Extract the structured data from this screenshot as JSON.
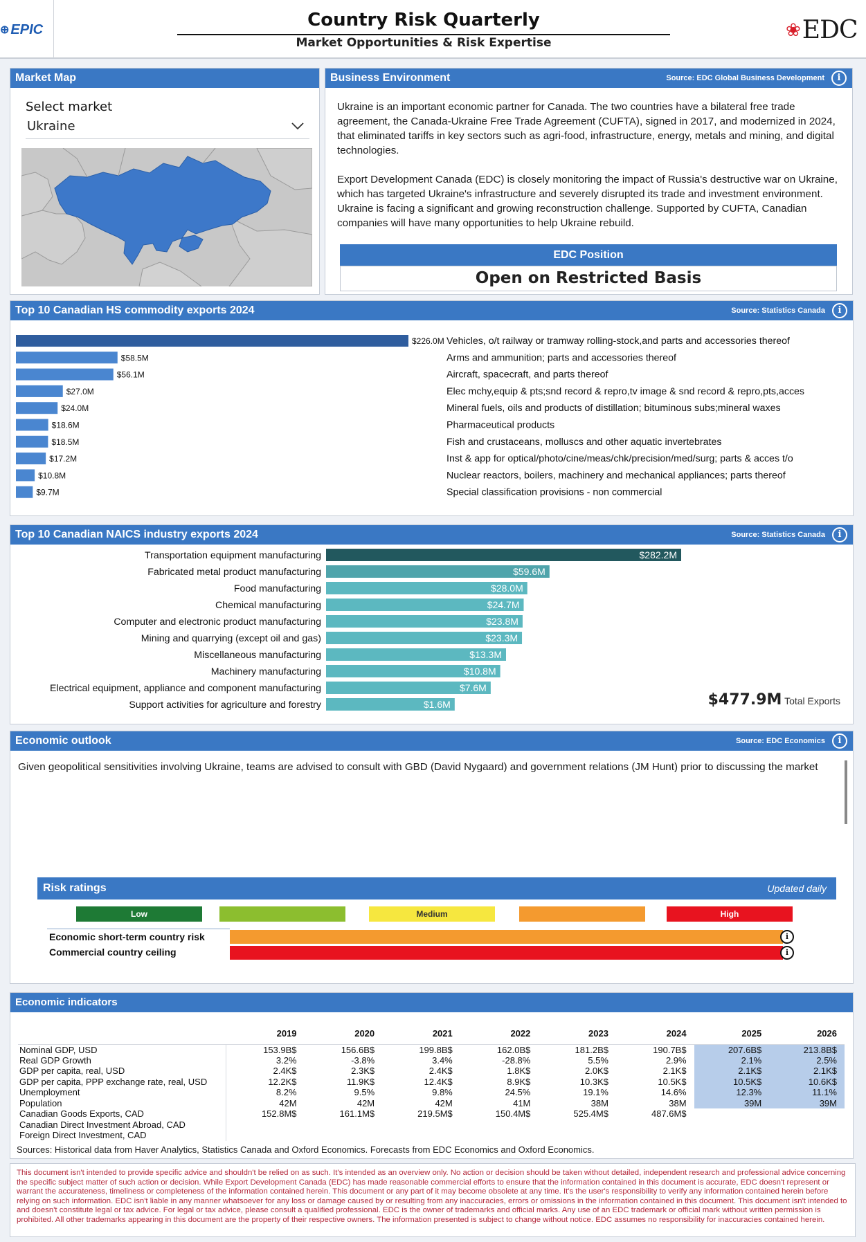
{
  "header": {
    "epic_logo": "EPIC",
    "title": "Country Risk Quarterly",
    "subtitle": "Market Opportunities & Risk Expertise",
    "edc_logo": "EDC"
  },
  "market_map": {
    "title": "Market Map",
    "select_label": "Select market",
    "selected_market": "Ukraine"
  },
  "business_environment": {
    "title": "Business Environment",
    "source": "Source: EDC Global Business Development",
    "paragraphs": [
      "Ukraine is an important economic partner for Canada. The two countries have a bilateral free trade agreement, the Canada-Ukraine Free Trade Agreement (CUFTA), signed in 2017, and modernized in 2024, that eliminated tariffs in key sectors such as agri-food, infrastructure, energy, metals and mining, and digital technologies.",
      "Export Development Canada (EDC) is closely monitoring the impact of Russia's destructive war on Ukraine, which has targeted Ukraine's infrastructure and severely disrupted its trade and investment environment. Ukraine is facing a significant and growing reconstruction challenge. Supported by CUFTA, Canadian companies will have many opportunities to help Ukraine rebuild."
    ],
    "edc_position_label": "EDC Position",
    "edc_position_value": "Open on Restricted Basis"
  },
  "hs_exports": {
    "title": "Top 10 Canadian HS commodity exports 2024",
    "source": "Source: Statistics Canada"
  },
  "naics_exports": {
    "title": "Top 10 Canadian NAICS industry exports 2024",
    "source": "Source: Statistics Canada",
    "total_value": "$477.9M",
    "total_label": "Total Exports"
  },
  "economic_outlook": {
    "title": "Economic outlook",
    "source": "Source: EDC Economics",
    "text": "Given geopolitical sensitivities involving Ukraine, teams are advised to consult with GBD (David Nygaard) and government relations (JM Hunt) prior to discussing the market"
  },
  "risk_ratings": {
    "title": "Risk ratings",
    "updated": "Updated daily",
    "legend": [
      {
        "label": "Low",
        "color": "#1e7a35",
        "text_color": "#ffffff"
      },
      {
        "label": "",
        "color": "#8cbe2f",
        "text_color": "#ffffff"
      },
      {
        "label": "Medium",
        "color": "#f6e73f",
        "text_color": "#333333"
      },
      {
        "label": "",
        "color": "#f49a2f",
        "text_color": "#ffffff"
      },
      {
        "label": "High",
        "color": "#e8131f",
        "text_color": "#ffffff"
      }
    ],
    "rows": [
      {
        "label": "Economic short-term country risk",
        "color": "#f49a2f"
      },
      {
        "label": "Commercial country ceiling",
        "color": "#e8131f"
      }
    ]
  },
  "economic_indicators": {
    "title": "Economic indicators",
    "years": [
      "2019",
      "2020",
      "2021",
      "2022",
      "2023",
      "2024",
      "2025",
      "2026"
    ],
    "rows": [
      {
        "label": "Nominal GDP, USD",
        "values": [
          "153.9B$",
          "156.6B$",
          "199.8B$",
          "162.0B$",
          "181.2B$",
          "190.7B$",
          "207.6B$",
          "213.8B$"
        ]
      },
      {
        "label": "Real GDP Growth",
        "values": [
          "3.2%",
          "-3.8%",
          "3.4%",
          "-28.8%",
          "5.5%",
          "2.9%",
          "2.1%",
          "2.5%"
        ]
      },
      {
        "label": "GDP per capita, real, USD",
        "values": [
          "2.4K$",
          "2.3K$",
          "2.4K$",
          "1.8K$",
          "2.0K$",
          "2.1K$",
          "2.1K$",
          "2.1K$"
        ]
      },
      {
        "label": "GDP per capita, PPP exchange rate, real, USD",
        "values": [
          "12.2K$",
          "11.9K$",
          "12.4K$",
          "8.9K$",
          "10.3K$",
          "10.5K$",
          "10.5K$",
          "10.6K$"
        ]
      },
      {
        "label": "Unemployment",
        "values": [
          "8.2%",
          "9.5%",
          "9.8%",
          "24.5%",
          "19.1%",
          "14.6%",
          "12.3%",
          "11.1%"
        ]
      },
      {
        "label": "Population",
        "values": [
          "42M",
          "42M",
          "42M",
          "41M",
          "38M",
          "38M",
          "39M",
          "39M"
        ]
      },
      {
        "label": "Canadian Goods Exports, CAD",
        "values": [
          "152.8M$",
          "161.1M$",
          "219.5M$",
          "150.4M$",
          "525.4M$",
          "487.6M$",
          "",
          ""
        ]
      },
      {
        "label": "Canadian Direct Investment Abroad, CAD",
        "values": [
          "",
          "",
          "",
          "",
          "",
          "",
          "",
          ""
        ]
      },
      {
        "label": "Foreign Direct Investment, CAD",
        "values": [
          "",
          "",
          "",
          "",
          "",
          "",
          "",
          ""
        ]
      }
    ],
    "sources": "Sources: Historical data from Haver Analytics, Statistics Canada and Oxford Economics. Forecasts from EDC Economics and Oxford Economics."
  },
  "disclaimer": "This document isn't intended to provide specific advice and shouldn't be relied on as such. It's intended as an overview only. No action or decision should be taken without detailed, independent research and professional advice concerning the specific subject matter of such action or decision. While Export Development Canada (EDC) has made reasonable commercial efforts to ensure that the information contained in this document is accurate, EDC doesn't represent or warrant the accurateness, timeliness or completeness of the information contained herein. This document or any part of it may become obsolete at any time. It's the user's responsibility to verify any information contained herein before relying on such information. EDC isn't liable in any manner whatsoever for any loss or damage caused by or resulting from any inaccuracies, errors or omissions in the information contained in this document. This document isn't intended to and doesn't constitute legal or tax advice. For legal or tax advice, please consult a qualified professional. EDC is the owner of trademarks and official marks. Any use of an EDC trademark or official mark without written permission is prohibited. All other trademarks appearing in this document are the property of their respective owners. The information presented is subject to change without notice. EDC assumes no responsibility for inaccuracies contained herein.",
  "chart_data": [
    {
      "type": "bar",
      "orientation": "horizontal",
      "title": "Top 10 Canadian HS commodity exports 2024",
      "categories": [
        "Vehicles, o/t railway or tramway rolling-stock,and parts and accessories thereof",
        "Arms and ammunition; parts and accessories thereof",
        "Aircraft, spacecraft, and parts thereof",
        "Elec mchy,equip & pts;snd record & repro,tv image & snd record & repro,pts,acces",
        "Mineral fuels, oils and products of distillation; bituminous subs;mineral waxes",
        "Pharmaceutical products",
        "Fish and crustaceans, molluscs and other aquatic invertebrates",
        "Inst & app for optical/photo/cine/meas/chk/precision/med/surg; parts & acces t/o",
        "Nuclear reactors, boilers, machinery and mechanical appliances; parts thereof",
        "Special classification provisions - non commercial"
      ],
      "values": [
        226.0,
        58.5,
        56.1,
        27.0,
        24.0,
        18.6,
        18.5,
        17.2,
        10.8,
        9.7
      ],
      "labels": [
        "$226.0M",
        "$58.5M",
        "$56.1M",
        "$27.0M",
        "$24.0M",
        "$18.6M",
        "$18.5M",
        "$17.2M",
        "$10.8M",
        "$9.7M"
      ],
      "xlim": [
        0,
        226.0
      ],
      "colors": {
        "top": "#2f5d9e",
        "rest": "#4a86d0"
      }
    },
    {
      "type": "bar",
      "orientation": "horizontal",
      "title": "Top 10 Canadian NAICS industry exports 2024",
      "categories": [
        "Transportation equipment manufacturing",
        "Fabricated metal product manufacturing",
        "Food manufacturing",
        "Chemical manufacturing",
        "Computer and electronic product manufacturing",
        "Mining and quarrying (except oil and gas)",
        "Miscellaneous manufacturing",
        "Machinery manufacturing",
        "Electrical equipment, appliance and component manufacturing",
        "Support activities for agriculture and forestry"
      ],
      "values": [
        282.2,
        59.6,
        28.0,
        24.7,
        23.8,
        23.3,
        13.3,
        10.8,
        7.6,
        1.6
      ],
      "labels": [
        "$282.2M",
        "$59.6M",
        "$28.0M",
        "$24.7M",
        "$23.8M",
        "$23.3M",
        "$13.3M",
        "$10.8M",
        "$7.6M",
        "$1.6M"
      ],
      "colors": {
        "top": "#22585e",
        "second": "#4fa4ab",
        "rest": "#5cb8c0"
      }
    }
  ]
}
